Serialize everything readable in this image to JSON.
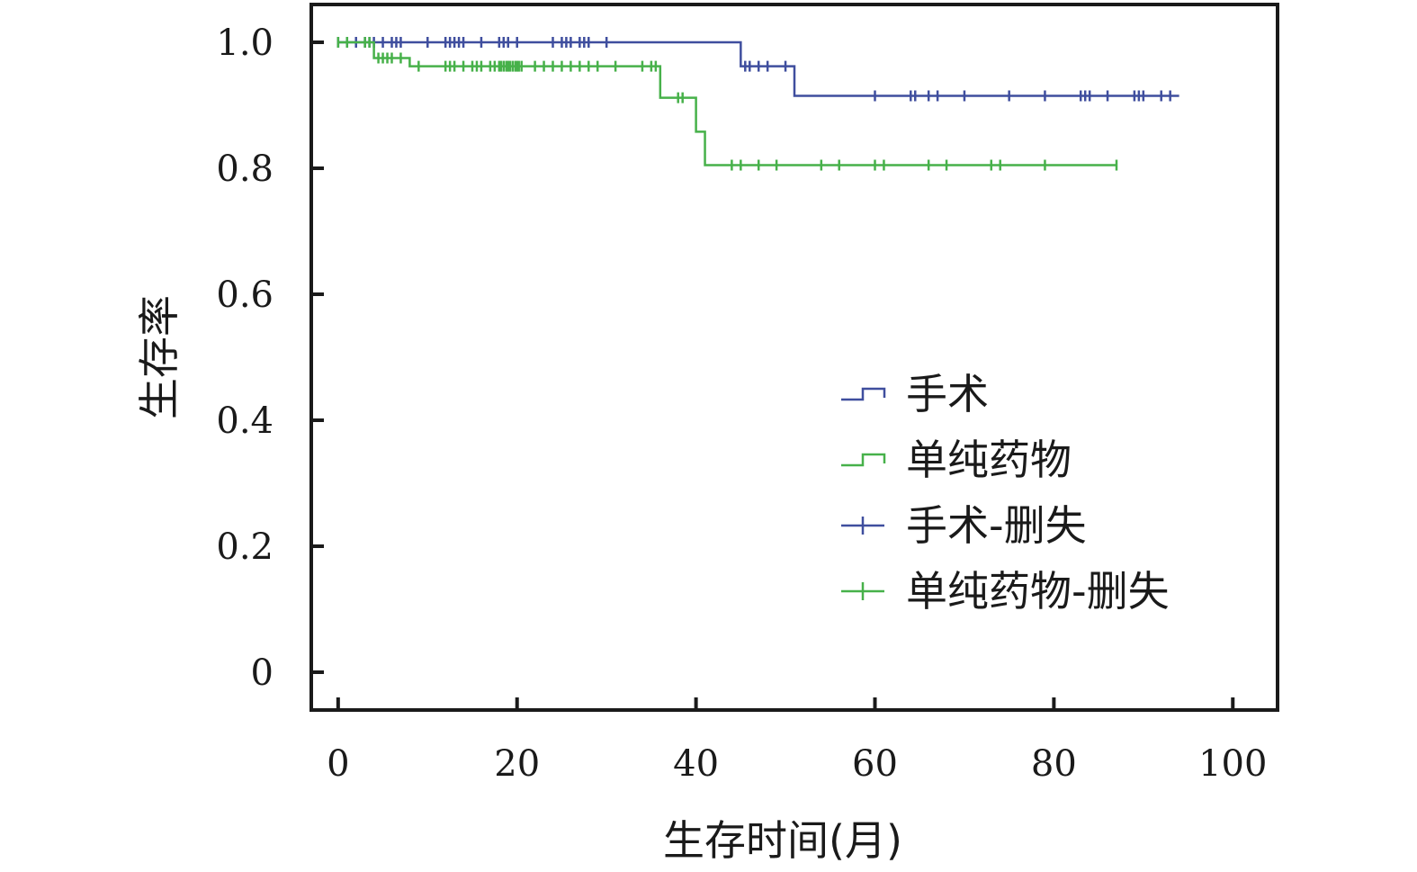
{
  "chart_data": {
    "type": "line",
    "subtype": "kaplan-meier",
    "title": "",
    "xlabel": "生存时间(月)",
    "ylabel": "生存率",
    "xlim": [
      -3,
      105
    ],
    "ylim": [
      -0.06,
      1.06
    ],
    "xticks": [
      0,
      20,
      40,
      60,
      80,
      100
    ],
    "xtick_labels": [
      "0",
      "20",
      "40",
      "60",
      "80",
      "100"
    ],
    "yticks": [
      0,
      0.2,
      0.4,
      0.6,
      0.8,
      1.0
    ],
    "ytick_labels": [
      "0",
      "0.2",
      "0.4",
      "0.6",
      "0.8",
      "1.0"
    ],
    "grid": false,
    "legend_position": "right",
    "legend": [
      {
        "label": "手术",
        "style": "step",
        "color": "#3f4e9e"
      },
      {
        "label": "单纯药物",
        "style": "step",
        "color": "#47b14a"
      },
      {
        "label": "手术-删失",
        "style": "censor",
        "color": "#3f4e9e"
      },
      {
        "label": "单纯药物-删失",
        "style": "censor",
        "color": "#47b14a"
      }
    ],
    "series": [
      {
        "name": "手术",
        "color": "#3f4e9e",
        "step_x": [
          0,
          45,
          51,
          94
        ],
        "step_y": [
          1.0,
          0.962,
          0.915,
          0.915
        ],
        "censored_x": [
          0,
          1,
          2,
          3,
          3.5,
          4,
          5,
          6,
          6.5,
          7,
          10,
          12,
          12.5,
          13,
          13.5,
          14,
          16,
          18,
          18.5,
          19,
          20,
          24,
          25,
          25.5,
          26,
          27,
          27.5,
          28,
          30,
          45.5,
          46,
          47,
          48,
          50,
          60,
          64,
          64.5,
          66,
          67,
          70,
          75,
          79,
          83,
          83.5,
          84,
          86,
          89,
          89.5,
          90,
          92,
          93
        ],
        "censored_y": [
          1.0,
          1.0,
          1.0,
          1.0,
          1.0,
          1.0,
          1.0,
          1.0,
          1.0,
          1.0,
          1.0,
          1.0,
          1.0,
          1.0,
          1.0,
          1.0,
          1.0,
          1.0,
          1.0,
          1.0,
          1.0,
          1.0,
          1.0,
          1.0,
          1.0,
          1.0,
          1.0,
          1.0,
          1.0,
          0.962,
          0.962,
          0.962,
          0.962,
          0.962,
          0.915,
          0.915,
          0.915,
          0.915,
          0.915,
          0.915,
          0.915,
          0.915,
          0.915,
          0.915,
          0.915,
          0.915,
          0.915,
          0.915,
          0.915,
          0.915,
          0.915
        ]
      },
      {
        "name": "单纯药物",
        "color": "#47b14a",
        "step_x": [
          0,
          4,
          8,
          36,
          40,
          41,
          87
        ],
        "step_y": [
          1.0,
          0.975,
          0.962,
          0.912,
          0.858,
          0.805,
          0.805
        ],
        "censored_x": [
          0,
          1,
          3,
          3.5,
          4.5,
          5,
          5.5,
          6,
          7,
          9,
          12,
          12.5,
          13,
          14,
          15,
          15.5,
          16,
          17,
          17.5,
          18,
          18.2,
          18.5,
          18.8,
          19,
          19.2,
          19.5,
          19.8,
          20,
          20.2,
          20.5,
          22,
          23,
          24,
          25,
          26,
          27,
          28,
          29,
          31,
          34,
          35,
          35.5,
          38,
          38.5,
          44,
          45,
          47,
          49,
          54,
          56,
          60,
          61,
          66,
          68,
          73,
          74,
          79,
          87
        ],
        "censored_y": [
          1.0,
          1.0,
          1.0,
          1.0,
          0.975,
          0.975,
          0.975,
          0.975,
          0.975,
          0.962,
          0.962,
          0.962,
          0.962,
          0.962,
          0.962,
          0.962,
          0.962,
          0.962,
          0.962,
          0.962,
          0.962,
          0.962,
          0.962,
          0.962,
          0.962,
          0.962,
          0.962,
          0.962,
          0.962,
          0.962,
          0.962,
          0.962,
          0.962,
          0.962,
          0.962,
          0.962,
          0.962,
          0.962,
          0.962,
          0.962,
          0.962,
          0.962,
          0.912,
          0.912,
          0.805,
          0.805,
          0.805,
          0.805,
          0.805,
          0.805,
          0.805,
          0.805,
          0.805,
          0.805,
          0.805,
          0.805,
          0.805,
          0.805
        ]
      }
    ]
  }
}
